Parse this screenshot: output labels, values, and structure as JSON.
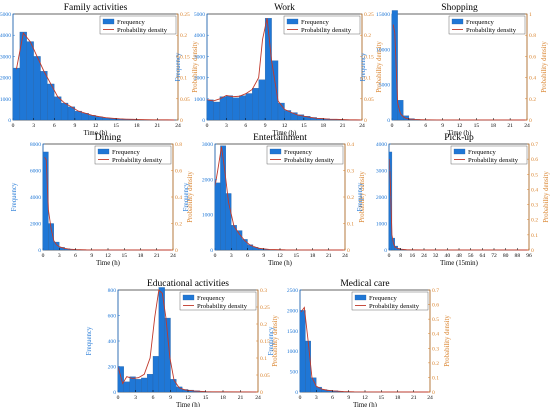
{
  "chart_data": [
    {
      "type": "bar",
      "title": "Family activities",
      "xlabel": "Time (h)",
      "ylabel": "Frequency",
      "ylabel2": "Probability density",
      "legend": [
        "Frequency",
        "Probability density"
      ],
      "bin_width": 1,
      "xlim": [
        0,
        24
      ],
      "xticks": [
        0,
        3,
        6,
        9,
        12,
        15,
        18,
        21,
        24
      ],
      "ylim": [
        0,
        5000
      ],
      "yticks": [
        0,
        1000,
        2000,
        3000,
        4000,
        5000
      ],
      "y2lim": [
        0,
        0.25
      ],
      "y2ticks": [
        0,
        0.05,
        0.1,
        0.15,
        0.2,
        0.25
      ],
      "values": [
        2450,
        4150,
        3700,
        3000,
        2300,
        1700,
        1100,
        800,
        620,
        420,
        320,
        220,
        160,
        110,
        80,
        55,
        40,
        30,
        20,
        15,
        10,
        8,
        5,
        3
      ],
      "density": {
        "x": [
          0.5,
          1.5,
          2.5,
          3.5,
          4.5,
          5.5,
          6.5,
          7.5,
          8.5,
          9.5,
          10.5,
          11.5,
          12.5,
          13.5,
          14.5,
          15.5,
          16.5,
          17.5,
          18.5,
          19.5,
          20.5,
          21.5,
          22.5,
          23.5
        ],
        "y": [
          0.12,
          0.205,
          0.185,
          0.15,
          0.115,
          0.085,
          0.055,
          0.04,
          0.031,
          0.021,
          0.016,
          0.011,
          0.008,
          0.0055,
          0.004,
          0.0028,
          0.002,
          0.0015,
          0.001,
          0.0008,
          0.0005,
          0.0004,
          0.0003,
          0.0002
        ]
      }
    },
    {
      "type": "bar",
      "title": "Work",
      "xlabel": "Time (h)",
      "ylabel": "Frequency",
      "ylabel2": "Probability density",
      "legend": [
        "Frequency",
        "Probability density"
      ],
      "bin_width": 1,
      "xlim": [
        0,
        24
      ],
      "xticks": [
        0,
        3,
        6,
        9,
        12,
        15,
        18,
        21,
        24
      ],
      "ylim": [
        0,
        5000
      ],
      "yticks": [
        0,
        1000,
        2000,
        3000,
        4000,
        5000
      ],
      "y2lim": [
        0,
        0.25
      ],
      "y2ticks": [
        0,
        0.05,
        0.1,
        0.15,
        0.2,
        0.25
      ],
      "values": [
        950,
        850,
        1100,
        1150,
        1050,
        1150,
        1250,
        1500,
        1900,
        4800,
        2800,
        800,
        450,
        350,
        250,
        180,
        120,
        80,
        60,
        40,
        30,
        20,
        10,
        5
      ],
      "density": {
        "x": [
          0,
          1,
          2,
          3,
          4,
          5,
          6,
          7,
          8,
          8.6,
          9.3,
          10,
          11,
          12,
          13,
          14,
          15,
          16,
          17,
          18,
          19,
          20,
          21,
          22,
          23,
          24
        ],
        "y": [
          0.048,
          0.045,
          0.05,
          0.058,
          0.055,
          0.056,
          0.062,
          0.072,
          0.1,
          0.19,
          0.24,
          0.14,
          0.045,
          0.025,
          0.018,
          0.012,
          0.009,
          0.006,
          0.004,
          0.003,
          0.002,
          0.0015,
          0.001,
          0.0005,
          0.0003,
          0.0001
        ]
      }
    },
    {
      "type": "bar",
      "title": "Shopping",
      "xlabel": "Time (h)",
      "ylabel": "Frequency",
      "ylabel2": "Probability density",
      "legend": [
        "Frequency",
        "Probability density"
      ],
      "bin_width": 1,
      "xlim": [
        0,
        24
      ],
      "xticks": [
        0,
        3,
        6,
        9,
        12,
        15,
        18,
        21,
        24
      ],
      "ylim": [
        0,
        15000
      ],
      "yticks": [
        0,
        5000,
        10000,
        15000
      ],
      "y2lim": [
        0,
        1
      ],
      "y2ticks": [
        0,
        0.2,
        0.4,
        0.6,
        0.8,
        1
      ],
      "values": [
        15500,
        2800,
        600,
        200,
        80,
        40,
        20,
        10,
        5,
        3,
        2,
        1,
        1,
        0,
        0,
        0,
        0,
        0,
        0,
        0,
        0,
        0,
        0,
        0
      ],
      "density": {
        "x": [
          0.2,
          0.5,
          1,
          1.5,
          2,
          2.5,
          3,
          4,
          5,
          6,
          8,
          24
        ],
        "y": [
          0.9,
          0.82,
          0.16,
          0.06,
          0.03,
          0.015,
          0.01,
          0.005,
          0.003,
          0.002,
          0.001,
          0
        ]
      }
    },
    {
      "type": "bar",
      "title": "Dining",
      "xlabel": "Time (h)",
      "ylabel": "Frequency",
      "ylabel2": "Probability density",
      "legend": [
        "Frequency",
        "Probability density"
      ],
      "bin_width": 1,
      "xlim": [
        0,
        24
      ],
      "xticks": [
        0,
        3,
        6,
        9,
        12,
        15,
        18,
        21,
        24
      ],
      "ylim": [
        0,
        8000
      ],
      "yticks": [
        0,
        2000,
        4000,
        6000,
        8000
      ],
      "y2lim": [
        0,
        0.8
      ],
      "y2ticks": [
        0,
        0.2,
        0.4,
        0.6,
        0.8
      ],
      "values": [
        7400,
        2000,
        600,
        200,
        100,
        50,
        30,
        15,
        10,
        5,
        3,
        2,
        1,
        1,
        0,
        0,
        0,
        0,
        0,
        0,
        0,
        0,
        0,
        0
      ],
      "density": {
        "x": [
          0.3,
          0.6,
          1,
          1.5,
          2,
          2.5,
          3,
          4,
          5,
          6,
          8,
          24
        ],
        "y": [
          0.7,
          0.68,
          0.3,
          0.16,
          0.07,
          0.04,
          0.025,
          0.012,
          0.006,
          0.003,
          0.001,
          0
        ]
      }
    },
    {
      "type": "bar",
      "title": "Entertainment",
      "xlabel": "Time (h)",
      "ylabel": "Frequency",
      "ylabel2": "Probability density",
      "legend": [
        "Frequency",
        "Probability density"
      ],
      "bin_width": 1,
      "xlim": [
        0,
        24
      ],
      "xticks": [
        0,
        3,
        6,
        9,
        12,
        15,
        18,
        21,
        24
      ],
      "ylim": [
        0,
        3000
      ],
      "yticks": [
        0,
        1000,
        2000,
        3000
      ],
      "y2lim": [
        0,
        0.4
      ],
      "y2ticks": [
        0,
        0.1,
        0.2,
        0.3,
        0.4
      ],
      "values": [
        1900,
        2950,
        1600,
        700,
        550,
        300,
        150,
        80,
        40,
        20,
        10,
        5,
        3,
        2,
        1,
        0,
        0,
        0,
        0,
        0,
        0,
        0,
        0,
        0
      ],
      "density": {
        "x": [
          0,
          0.5,
          1.2,
          1.8,
          2.5,
          3.5,
          4.5,
          5.5,
          6.5,
          8,
          10,
          13,
          24
        ],
        "y": [
          0.24,
          0.3,
          0.39,
          0.3,
          0.18,
          0.09,
          0.06,
          0.035,
          0.018,
          0.007,
          0.002,
          0.0005,
          0
        ]
      }
    },
    {
      "type": "bar",
      "title": "Pick-up",
      "xlabel": "Time  (15min)",
      "ylabel": "Frequency",
      "ylabel2": "Probability density",
      "legend": [
        "Frequency",
        "Probability density"
      ],
      "bin_width": 2,
      "xlim": [
        0,
        96
      ],
      "xticks": [
        0,
        8,
        16,
        24,
        32,
        40,
        48,
        56,
        64,
        72,
        80,
        88,
        96
      ],
      "ylim": [
        0,
        4000
      ],
      "yticks": [
        0,
        1000,
        2000,
        3000,
        4000
      ],
      "y2lim": [
        0,
        0.7
      ],
      "y2ticks": [
        0,
        0.1,
        0.2,
        0.3,
        0.4,
        0.5,
        0.6,
        0.7
      ],
      "values": [
        3700,
        450,
        150,
        60,
        30,
        15,
        10,
        5,
        3,
        2,
        1,
        1,
        0,
        0,
        0,
        0,
        0,
        0,
        0,
        0,
        0,
        0,
        0,
        0,
        0,
        0,
        0,
        0,
        0,
        0,
        0,
        0,
        0,
        0,
        0,
        0,
        0,
        0,
        0,
        0,
        0,
        0,
        0,
        0,
        0,
        0,
        0,
        0
      ],
      "density": {
        "x": [
          0.3,
          1,
          2,
          3,
          4,
          6,
          8,
          12,
          16,
          24,
          96
        ],
        "y": [
          0.6,
          0.42,
          0.1,
          0.045,
          0.02,
          0.01,
          0.005,
          0.002,
          0.001,
          0.0005,
          0
        ]
      }
    },
    {
      "type": "bar",
      "title": "Educational activities",
      "xlabel": "Time  (h)",
      "ylabel": "Frequency",
      "ylabel2": "Probability density",
      "legend": [
        "Frequency",
        "Probability density"
      ],
      "bin_width": 1,
      "xlim": [
        0,
        24
      ],
      "xticks": [
        0,
        3,
        6,
        9,
        12,
        15,
        18,
        21,
        24
      ],
      "ylim": [
        0,
        800
      ],
      "yticks": [
        0,
        200,
        400,
        600,
        800
      ],
      "y2lim": [
        0,
        0.3
      ],
      "y2ticks": [
        0,
        0.05,
        0.1,
        0.15,
        0.2,
        0.25,
        0.3
      ],
      "values": [
        200,
        80,
        120,
        100,
        110,
        140,
        280,
        820,
        580,
        100,
        40,
        20,
        15,
        10,
        5,
        3,
        2,
        1,
        1,
        0,
        0,
        0,
        0,
        0
      ],
      "density": {
        "x": [
          0,
          0.8,
          1.5,
          2.5,
          3.5,
          4.5,
          5.5,
          6.3,
          7,
          7.6,
          8.2,
          8.9,
          9.6,
          10.5,
          11.5,
          13,
          15,
          18,
          24
        ],
        "y": [
          0.075,
          0.025,
          0.045,
          0.04,
          0.042,
          0.052,
          0.1,
          0.22,
          0.3,
          0.29,
          0.22,
          0.1,
          0.035,
          0.012,
          0.006,
          0.003,
          0.001,
          0.0005,
          0
        ]
      }
    },
    {
      "type": "bar",
      "title": "Medical care",
      "xlabel": "Time  (h)",
      "ylabel": "Frequency",
      "ylabel2": "Probability density",
      "legend": [
        "Frequency",
        "Probability density"
      ],
      "bin_width": 1,
      "xlim": [
        0,
        24
      ],
      "xticks": [
        0,
        3,
        6,
        9,
        12,
        15,
        18,
        21,
        24
      ],
      "ylim": [
        0,
        2500
      ],
      "yticks": [
        0,
        500,
        1000,
        1500,
        2000,
        2500
      ],
      "y2lim": [
        0,
        0.7
      ],
      "y2ticks": [
        0,
        0.1,
        0.2,
        0.3,
        0.4,
        0.5,
        0.6,
        0.7
      ],
      "values": [
        2000,
        1250,
        350,
        120,
        60,
        40,
        30,
        20,
        10,
        5,
        3,
        2,
        1,
        0,
        0,
        0,
        0,
        0,
        0,
        0,
        0,
        0,
        0,
        0
      ],
      "density": {
        "x": [
          0.2,
          0.8,
          1.5,
          2.2,
          3,
          4,
          5,
          6,
          8,
          10,
          24
        ],
        "y": [
          0.55,
          0.58,
          0.35,
          0.1,
          0.04,
          0.02,
          0.012,
          0.008,
          0.003,
          0.001,
          0
        ]
      }
    }
  ],
  "colors": {
    "bar": "#1f77d6",
    "bar_edge": "#2a5f9c",
    "density": "#c0392b",
    "left_axis": "#1f77d6",
    "right_axis": "#d9822b",
    "axis": "#000000"
  }
}
